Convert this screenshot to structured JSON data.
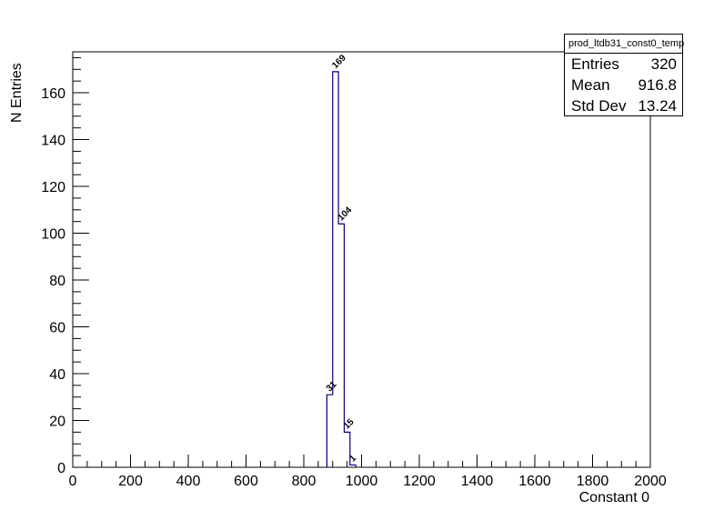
{
  "chart_data": {
    "type": "bar",
    "histogram": true,
    "bin_width": 20,
    "bins": [
      {
        "low": 880,
        "high": 900,
        "count": 31,
        "label": "31"
      },
      {
        "low": 900,
        "high": 920,
        "count": 169,
        "label": "169"
      },
      {
        "low": 920,
        "high": 940,
        "count": 104,
        "label": "104"
      },
      {
        "low": 940,
        "high": 960,
        "count": 15,
        "label": "15"
      },
      {
        "low": 960,
        "high": 980,
        "count": 1,
        "label": "1"
      }
    ],
    "xlabel": "Constant 0",
    "ylabel": "N Entries",
    "xlim": [
      0,
      2000
    ],
    "ylim": [
      0,
      177.5
    ],
    "x_ticks": [
      0,
      200,
      400,
      600,
      800,
      1000,
      1200,
      1400,
      1600,
      1800,
      2000
    ],
    "y_ticks": [
      0,
      20,
      40,
      60,
      80,
      100,
      120,
      140,
      160
    ],
    "grid": false,
    "line_color": "#000080"
  },
  "stats": {
    "title": "prod_ltdb31_const0_temp",
    "rows": [
      {
        "label": "Entries",
        "value": "320"
      },
      {
        "label": "Mean",
        "value": "916.8"
      },
      {
        "label": "Std Dev",
        "value": "13.24"
      }
    ]
  }
}
